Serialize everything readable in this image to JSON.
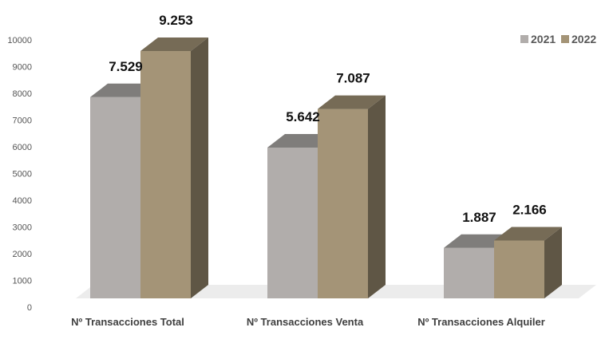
{
  "chart_data": {
    "type": "bar",
    "style": "3d-clustered-column",
    "categories": [
      "Nº Transacciones Total",
      "Nº Transacciones Venta",
      "Nº Transacciones Alquiler"
    ],
    "series": [
      {
        "name": "2021",
        "values": [
          7529,
          5642,
          1887
        ],
        "labels": [
          "7.529",
          "5.642",
          "1.887"
        ],
        "color": "#b1adab"
      },
      {
        "name": "2022",
        "values": [
          9253,
          7087,
          2166
        ],
        "labels": [
          "9.253",
          "7.087",
          "2.166"
        ],
        "color": "#a49477"
      }
    ],
    "ylim": [
      0,
      10000
    ],
    "yticks": [
      0,
      1000,
      2000,
      3000,
      4000,
      5000,
      6000,
      7000,
      8000,
      9000,
      10000
    ],
    "grid": false,
    "legend": "top-right",
    "title": "",
    "xlabel": "",
    "ylabel": ""
  }
}
